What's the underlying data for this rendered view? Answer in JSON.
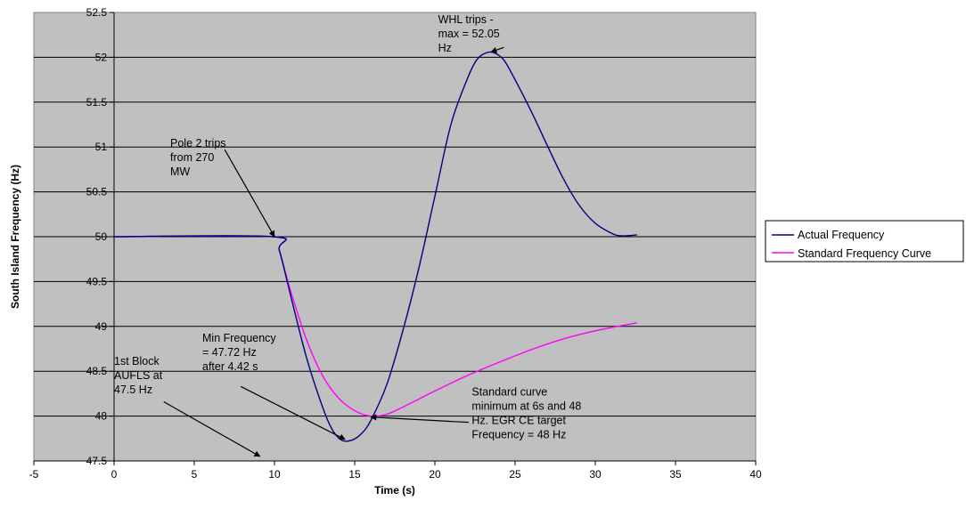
{
  "chart_data": {
    "type": "line",
    "title": "",
    "xlabel": "Time (s)",
    "ylabel": "South Island Frequency (Hz)",
    "xlim": [
      -5,
      40
    ],
    "ylim": [
      47.5,
      52.5
    ],
    "xticks": [
      "-5",
      "0",
      "5",
      "10",
      "15",
      "20",
      "25",
      "30",
      "35",
      "40"
    ],
    "yticks": [
      "47.5",
      "48",
      "48.5",
      "49",
      "49.5",
      "50",
      "50.5",
      "51",
      "51.5",
      "52",
      "52.5"
    ],
    "grid": "horizontal",
    "background": "#c0c0c0",
    "legend_position": "right",
    "series": [
      {
        "name": "Actual Frequency",
        "color": "#000080",
        "points": [
          [
            0,
            50.0
          ],
          [
            9.9,
            50.0
          ],
          [
            10.3,
            49.85
          ],
          [
            11,
            49.35
          ],
          [
            12,
            48.65
          ],
          [
            13,
            48.1
          ],
          [
            13.6,
            47.85
          ],
          [
            14.2,
            47.73
          ],
          [
            14.8,
            47.73
          ],
          [
            15.4,
            47.8
          ],
          [
            16,
            47.95
          ],
          [
            17,
            48.35
          ],
          [
            18,
            48.95
          ],
          [
            19,
            49.65
          ],
          [
            20,
            50.45
          ],
          [
            21,
            51.25
          ],
          [
            22,
            51.75
          ],
          [
            22.6,
            51.97
          ],
          [
            23.2,
            52.05
          ],
          [
            23.7,
            52.05
          ],
          [
            24.3,
            51.97
          ],
          [
            25,
            51.75
          ],
          [
            26,
            51.4
          ],
          [
            27,
            51.02
          ],
          [
            28,
            50.65
          ],
          [
            29,
            50.35
          ],
          [
            30,
            50.15
          ],
          [
            31,
            50.04
          ],
          [
            31.6,
            50.01
          ],
          [
            32.6,
            50.02
          ]
        ]
      },
      {
        "name": "Standard Frequency Curve",
        "color": "#ff00ff",
        "points": [
          [
            0,
            50.0
          ],
          [
            9.9,
            50.0
          ],
          [
            10.3,
            49.85
          ],
          [
            11,
            49.4
          ],
          [
            12,
            48.85
          ],
          [
            13,
            48.45
          ],
          [
            14,
            48.2
          ],
          [
            15,
            48.06
          ],
          [
            16,
            48.0
          ],
          [
            17,
            48.02
          ],
          [
            18,
            48.1
          ],
          [
            20,
            48.28
          ],
          [
            22,
            48.45
          ],
          [
            24,
            48.6
          ],
          [
            26,
            48.74
          ],
          [
            28,
            48.86
          ],
          [
            30,
            48.95
          ],
          [
            32.6,
            49.04
          ]
        ]
      }
    ],
    "annotations": [
      {
        "lines": [
          "WHL trips -",
          "max = 52.05",
          "Hz"
        ],
        "x": 20.2,
        "y": 52.38,
        "arrow_from": [
          24.3,
          52.11
        ],
        "arrow_to": [
          23.5,
          52.06
        ]
      },
      {
        "lines": [
          "Pole 2 trips",
          "from 270",
          "MW"
        ],
        "x": 3.5,
        "y": 51.0,
        "arrow_from": [
          6.9,
          50.97
        ],
        "arrow_to": [
          10.0,
          50.0
        ]
      },
      {
        "lines": [
          "Min Frequency",
          "= 47.72 Hz",
          "after 4.42 s"
        ],
        "x": 5.5,
        "y": 48.83,
        "arrow_from": [
          7.9,
          48.33
        ],
        "arrow_to": [
          14.4,
          47.74
        ]
      },
      {
        "lines": [
          "1st Block",
          "AUFLS at",
          "47.5 Hz"
        ],
        "x": 0.0,
        "y": 48.57,
        "arrow_from": [
          3.1,
          48.16
        ],
        "arrow_to": [
          9.1,
          47.55
        ]
      },
      {
        "lines": [
          "Standard curve",
          "minimum at 6s and 48",
          "Hz. EGR CE target",
          "Frequency = 48 Hz"
        ],
        "x": 22.3,
        "y": 48.23,
        "arrow_from": [
          22.1,
          47.93
        ],
        "arrow_to": [
          16.0,
          47.99
        ]
      }
    ]
  }
}
